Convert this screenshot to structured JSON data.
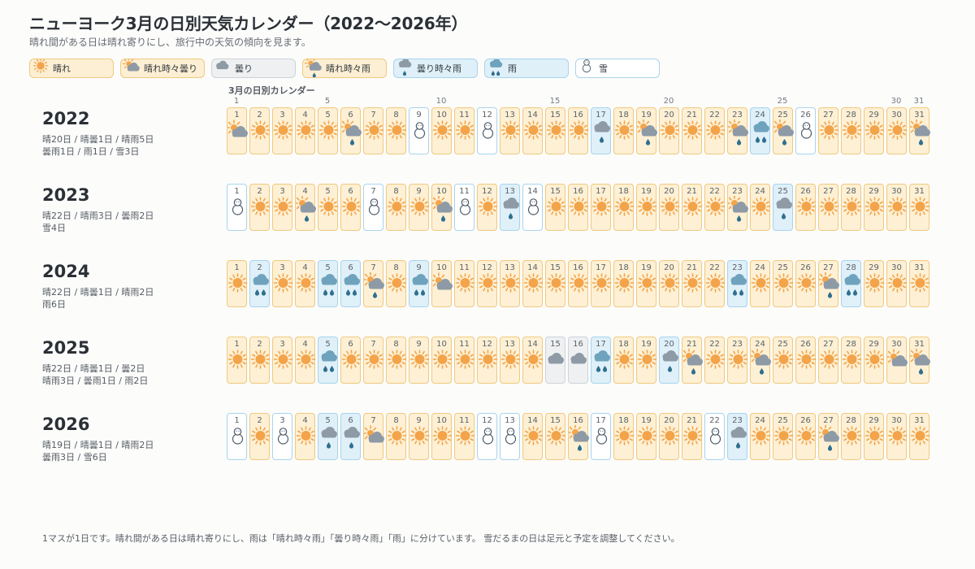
{
  "header": {
    "title": "ニューヨーク3月の日別天気カレンダー（2022〜2026年）",
    "subtitle": "晴れ間がある日は晴れ寄りにし、旅行中の天気の傾向を見ます。"
  },
  "legend": [
    {
      "type": "sunny",
      "label": "晴れ",
      "icon": "sun-icon"
    },
    {
      "type": "partly",
      "label": "晴れ時々曇り",
      "icon": "sun-behind-cloud-icon"
    },
    {
      "type": "cloudy",
      "label": "曇り",
      "icon": "cloud-icon"
    },
    {
      "type": "sunshower",
      "label": "晴れ時々雨",
      "icon": "sun-cloud-rain-icon"
    },
    {
      "type": "cloudyrain",
      "label": "曇り時々雨",
      "icon": "cloud-rain-icon"
    },
    {
      "type": "rain",
      "label": "雨",
      "icon": "heavy-rain-icon"
    },
    {
      "type": "snow",
      "label": "雪",
      "icon": "snowman-icon"
    }
  ],
  "calendar_title": "3月の日別カレンダー",
  "day_ticks": [
    "1",
    "5",
    "10",
    "15",
    "20",
    "25",
    "30",
    "31"
  ],
  "colors": {
    "sun": "#f3a44a",
    "cloud": "#8e9aa6",
    "rain_cloud": "#6fa3bd",
    "drop": "#2f6f8f",
    "snowman_outline": "#4b5b6a"
  },
  "years": [
    {
      "year": "2022",
      "summary_line1": "晴20日 / 晴曇1日 / 晴雨5日",
      "summary_line2": "曇雨1日 / 雨1日 / 雪3日",
      "days": [
        "partly",
        "sunny",
        "sunny",
        "sunny",
        "sunny",
        "sunshower",
        "sunny",
        "sunny",
        "snow",
        "sunny",
        "sunny",
        "snow",
        "sunny",
        "sunny",
        "sunny",
        "sunny",
        "cloudyrain",
        "sunny",
        "sunshower",
        "sunny",
        "sunny",
        "sunny",
        "sunshower",
        "rain",
        "sunshower",
        "snow",
        "sunny",
        "sunny",
        "sunny",
        "sunny",
        "sunshower"
      ]
    },
    {
      "year": "2023",
      "summary_line1": "晴22日 / 晴雨3日 / 曇雨2日",
      "summary_line2": "雪4日",
      "days": [
        "snow",
        "sunny",
        "sunny",
        "sunshower",
        "sunny",
        "sunny",
        "snow",
        "sunny",
        "sunny",
        "sunshower",
        "snow",
        "sunny",
        "cloudyrain",
        "snow",
        "sunny",
        "sunny",
        "sunny",
        "sunny",
        "sunny",
        "sunny",
        "sunny",
        "sunny",
        "sunshower",
        "sunny",
        "cloudyrain",
        "sunny",
        "sunny",
        "sunny",
        "sunny",
        "sunny",
        "sunny"
      ]
    },
    {
      "year": "2024",
      "summary_line1": "晴22日 / 晴曇1日 / 晴雨2日",
      "summary_line2": "雨6日",
      "days": [
        "sunny",
        "rain",
        "sunny",
        "sunny",
        "rain",
        "rain",
        "sunshower",
        "sunny",
        "rain",
        "partly",
        "sunny",
        "sunny",
        "sunny",
        "sunny",
        "sunny",
        "sunny",
        "sunny",
        "sunny",
        "sunny",
        "sunny",
        "sunny",
        "sunny",
        "rain",
        "sunny",
        "sunny",
        "sunny",
        "sunshower",
        "rain",
        "sunny",
        "sunny",
        "sunny"
      ]
    },
    {
      "year": "2025",
      "summary_line1": "晴22日 / 晴曇1日 / 曇2日",
      "summary_line2": "晴雨3日 / 曇雨1日 / 雨2日",
      "days": [
        "sunny",
        "sunny",
        "sunny",
        "sunny",
        "rain",
        "sunny",
        "sunny",
        "sunny",
        "sunny",
        "sunny",
        "sunny",
        "sunny",
        "sunny",
        "sunny",
        "cloudy",
        "cloudy",
        "rain",
        "sunny",
        "sunny",
        "cloudyrain",
        "sunshower",
        "sunny",
        "sunny",
        "sunshower",
        "sunny",
        "sunny",
        "sunny",
        "sunny",
        "sunny",
        "partly",
        "sunshower"
      ]
    },
    {
      "year": "2026",
      "summary_line1": "晴19日 / 晴曇1日 / 晴雨2日",
      "summary_line2": "曇雨3日 / 雪6日",
      "days": [
        "snow",
        "sunny",
        "snow",
        "sunny",
        "cloudyrain",
        "cloudyrain",
        "partly",
        "sunny",
        "sunny",
        "sunny",
        "sunny",
        "snow",
        "snow",
        "sunny",
        "sunny",
        "sunshower",
        "snow",
        "sunny",
        "sunny",
        "sunny",
        "sunny",
        "snow",
        "cloudyrain",
        "sunny",
        "sunny",
        "sunny",
        "sunshower",
        "sunny",
        "sunny",
        "sunny",
        "sunny"
      ]
    }
  ],
  "footer": "1マスが1日です。晴れ間がある日は晴れ寄りにし、雨は「晴れ時々雨」「曇り時々雨」「雨」に分けています。 雪だるまの日は足元と予定を調整してください。"
}
